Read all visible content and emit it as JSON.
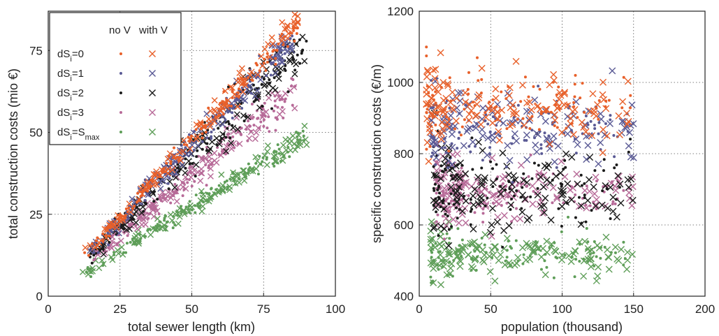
{
  "colors": {
    "dS0": "#e8602a",
    "dS1": "#5a5a95",
    "dS2": "#1a1a1a",
    "dS3": "#b76a98",
    "dSmax": "#5e9e58"
  },
  "legend": {
    "header_no_v": "no V",
    "header_with_v": "with V",
    "entries": [
      {
        "key": "dS0",
        "base": "dS",
        "sub": "i",
        "suffix": "=0",
        "sub2": ""
      },
      {
        "key": "dS1",
        "base": "dS",
        "sub": "i",
        "suffix": "=1",
        "sub2": ""
      },
      {
        "key": "dS2",
        "base": "dS",
        "sub": "i",
        "suffix": "=2",
        "sub2": ""
      },
      {
        "key": "dS3",
        "base": "dS",
        "sub": "i",
        "suffix": "=3",
        "sub2": ""
      },
      {
        "key": "dSmax",
        "base": "dS",
        "sub": "i",
        "suffix": "=S",
        "sub2": "max"
      }
    ]
  },
  "chart_data": [
    {
      "type": "scatter",
      "xlabel": "total sewer length (km)",
      "ylabel": "total construction costs (mio €)",
      "xlim": [
        0,
        100
      ],
      "ylim": [
        0,
        87
      ],
      "xticks": [
        "0",
        "25",
        "50",
        "75",
        "100"
      ],
      "yticks": [
        "0",
        "25",
        "50",
        "75"
      ],
      "grid": true,
      "legend_position": "top-left",
      "series": [
        {
          "key": "dS0",
          "slope": 0.96,
          "x_range": [
            12,
            87
          ],
          "spread": 1.6
        },
        {
          "key": "dS1",
          "slope": 0.925,
          "x_range": [
            14,
            85
          ],
          "spread": 2.0
        },
        {
          "key": "dS2",
          "slope": 0.86,
          "x_range": [
            14,
            90
          ],
          "spread": 2.6
        },
        {
          "key": "dS3",
          "slope": 0.74,
          "x_range": [
            15,
            86
          ],
          "spread": 2.0
        },
        {
          "key": "dSmax",
          "slope": 0.55,
          "x_range": [
            12,
            90
          ],
          "spread": 1.2
        }
      ]
    },
    {
      "type": "scatter",
      "xlabel": "population (thousand)",
      "ylabel": "specific construction costs (€/m)",
      "xlim": [
        0,
        200
      ],
      "ylim": [
        400,
        1200
      ],
      "xticks": [
        "0",
        "50",
        "100",
        "150",
        "200"
      ],
      "yticks": [
        "400",
        "600",
        "800",
        "1000",
        "1200"
      ],
      "grid": true,
      "series": [
        {
          "key": "dS0",
          "center": 930,
          "spread": 45,
          "x_range": [
            5,
            150
          ]
        },
        {
          "key": "dS1",
          "center": 870,
          "spread": 50,
          "x_range": [
            8,
            150
          ]
        },
        {
          "key": "dS2",
          "center": 700,
          "spread": 55,
          "x_range": [
            10,
            150
          ]
        },
        {
          "key": "dS3",
          "center": 690,
          "spread": 40,
          "x_range": [
            12,
            150
          ]
        },
        {
          "key": "dSmax",
          "center": 515,
          "spread": 28,
          "x_range": [
            8,
            150
          ]
        }
      ]
    }
  ]
}
